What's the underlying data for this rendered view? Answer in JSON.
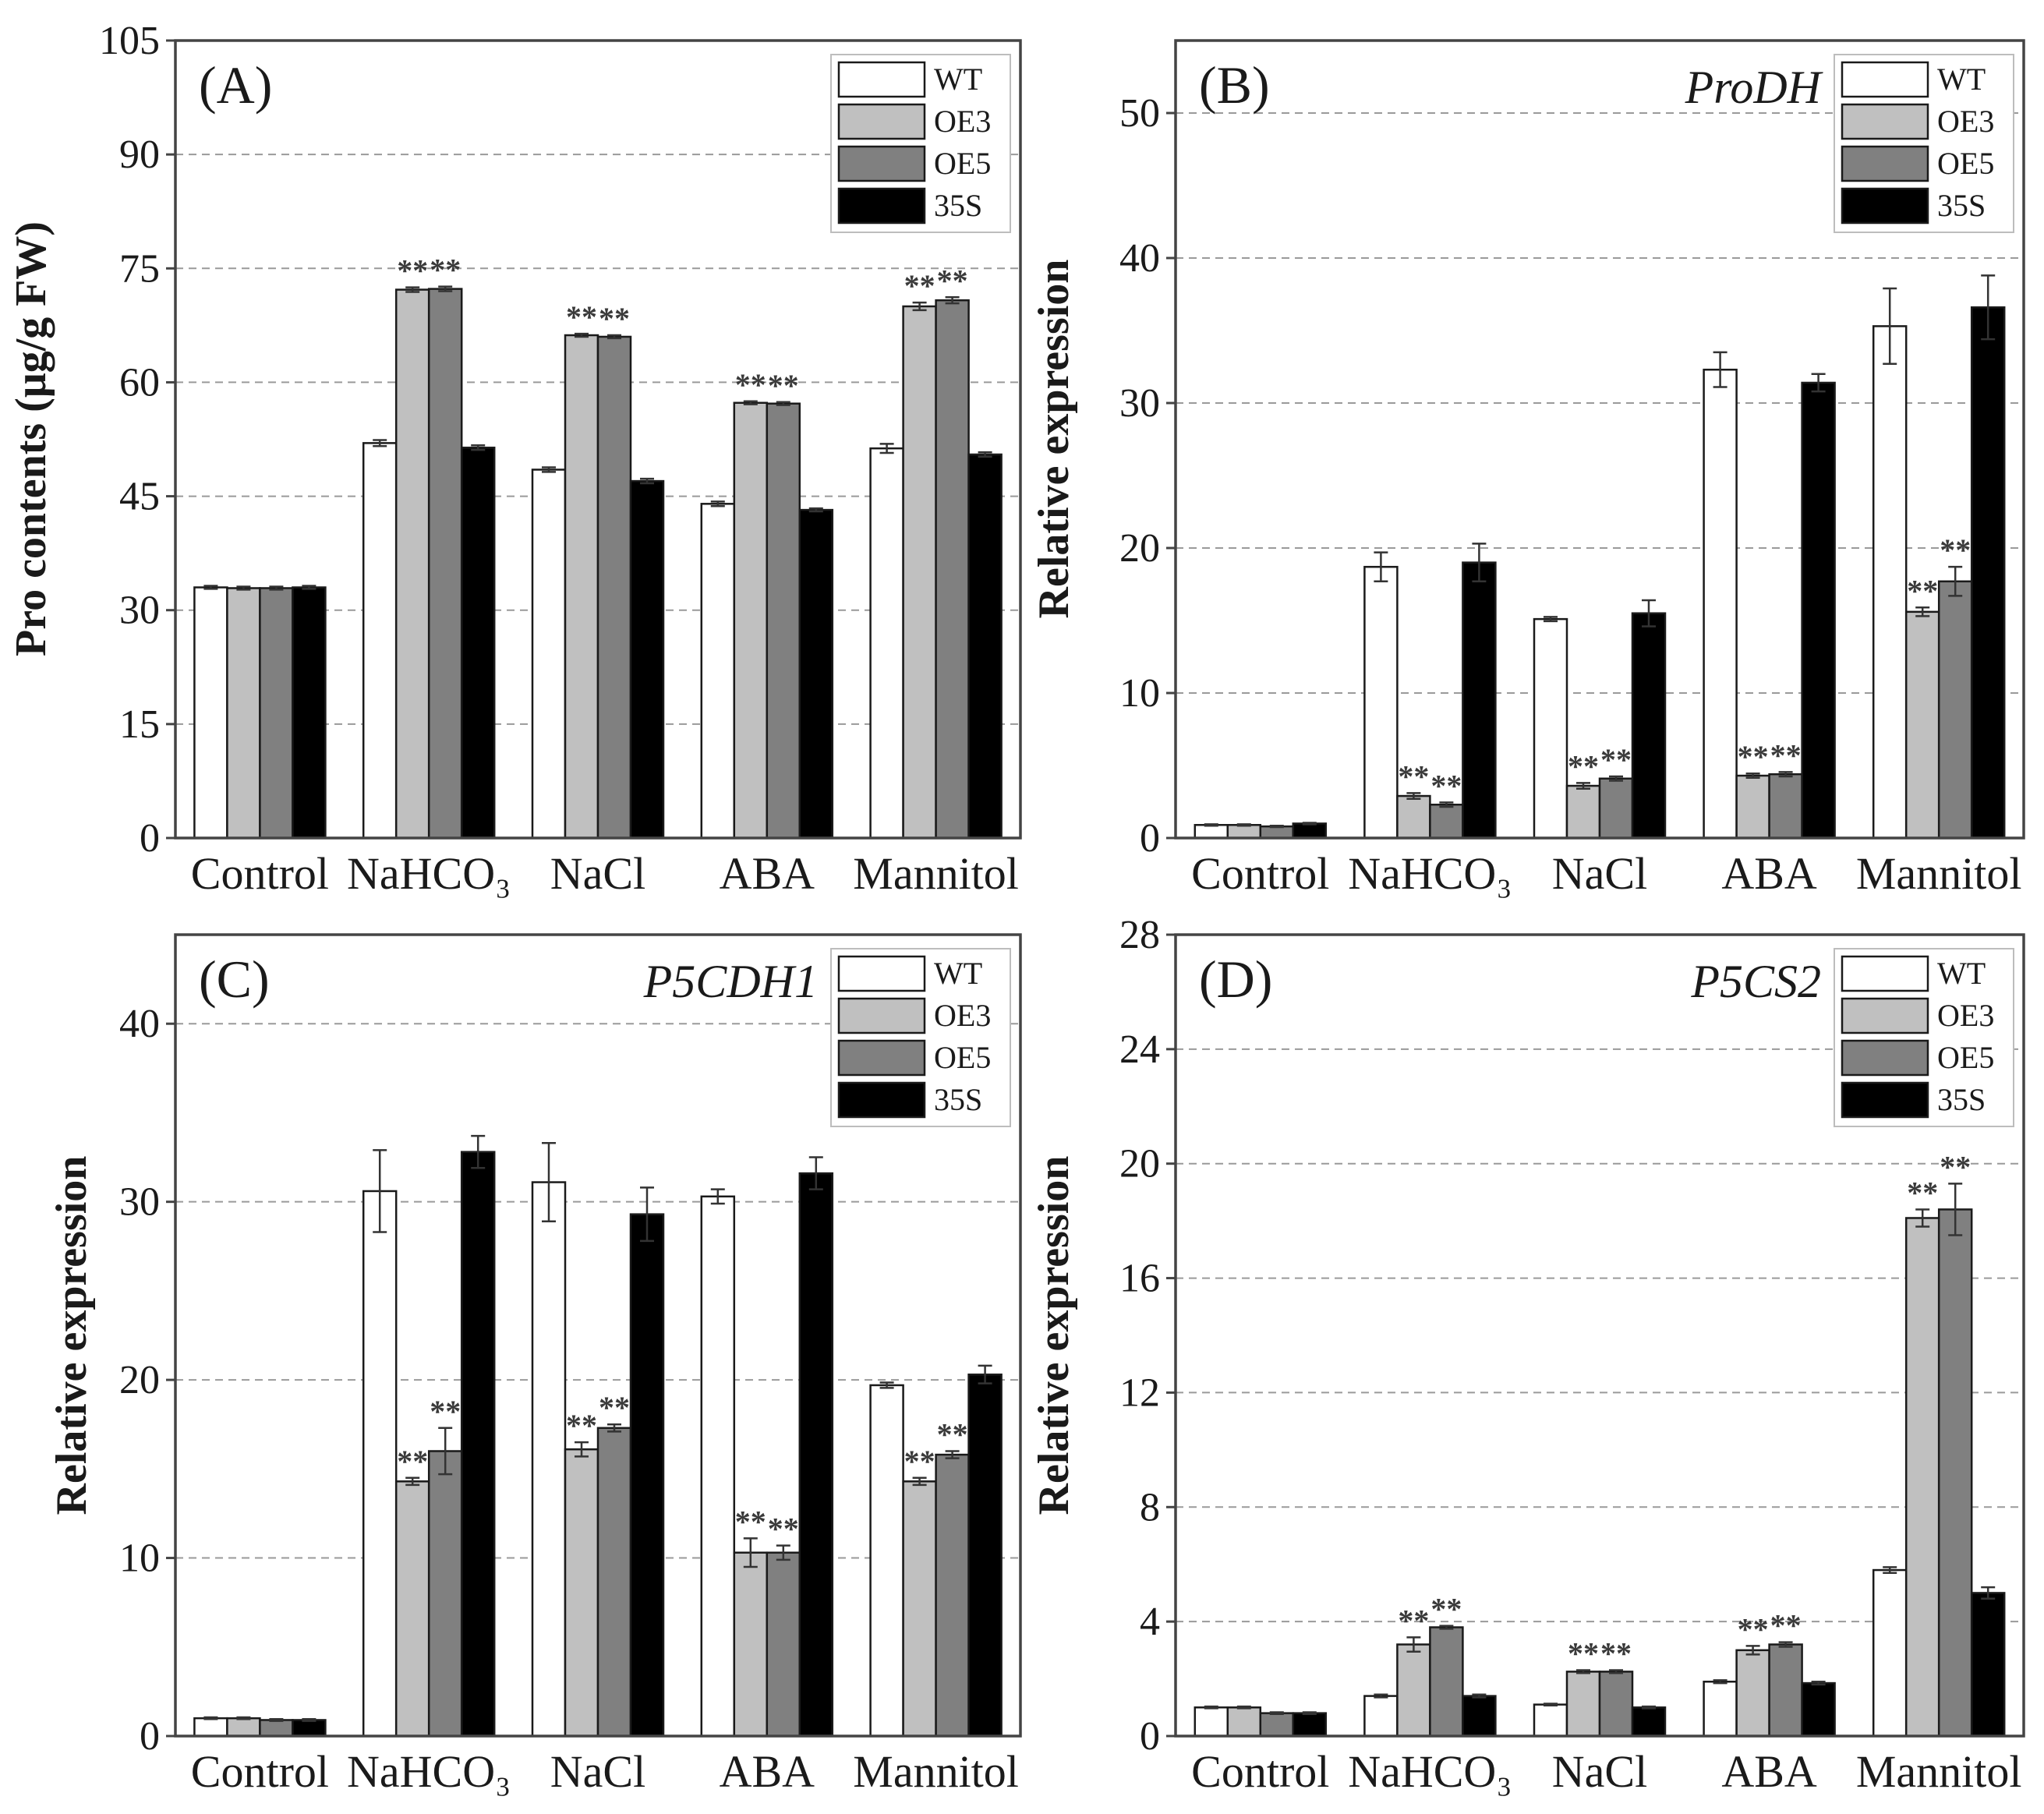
{
  "chart_data": [
    {
      "type": "bar",
      "panel_label": "(A)",
      "gene_title": "",
      "ylabel": "Pro contents (μg/g FW)",
      "ylim": [
        0,
        105
      ],
      "yticks": [
        0,
        15,
        30,
        45,
        60,
        75,
        90,
        105
      ],
      "grid": "horizontal dashed",
      "legend_position": "top-right",
      "categories": [
        "Control",
        "NaHCO₃",
        "NaCl",
        "ABA",
        "Mannitol"
      ],
      "series": [
        {
          "name": "WT",
          "values": [
            33,
            52,
            48.5,
            44,
            51.3
          ],
          "errors": [
            0.2,
            0.4,
            0.3,
            0.3,
            0.6
          ]
        },
        {
          "name": "OE3",
          "values": [
            32.9,
            72.2,
            66.2,
            57.3,
            70
          ],
          "errors": [
            0.2,
            0.3,
            0.2,
            0.2,
            0.5
          ]
        },
        {
          "name": "OE5",
          "values": [
            32.9,
            72.3,
            66,
            57.2,
            70.8
          ],
          "errors": [
            0.2,
            0.3,
            0.2,
            0.2,
            0.4
          ]
        },
        {
          "name": "35S",
          "values": [
            33,
            51.4,
            47,
            43.2,
            50.5
          ],
          "errors": [
            0.2,
            0.3,
            0.3,
            0.2,
            0.3
          ]
        }
      ],
      "significance": [
        {
          "category": "NaHCO₃",
          "series": "OE3",
          "mark": "**"
        },
        {
          "category": "NaHCO₃",
          "series": "OE5",
          "mark": "**"
        },
        {
          "category": "NaCl",
          "series": "OE3",
          "mark": "**"
        },
        {
          "category": "NaCl",
          "series": "OE5",
          "mark": "**"
        },
        {
          "category": "ABA",
          "series": "OE3",
          "mark": "**"
        },
        {
          "category": "ABA",
          "series": "OE5",
          "mark": "**"
        },
        {
          "category": "Mannitol",
          "series": "OE3",
          "mark": "**"
        },
        {
          "category": "Mannitol",
          "series": "OE5",
          "mark": "**"
        }
      ]
    },
    {
      "type": "bar",
      "panel_label": "(B)",
      "gene_title": "ProDH",
      "ylabel": "Relative expression",
      "ylim": [
        0,
        55
      ],
      "yticks": [
        0,
        10,
        20,
        30,
        40,
        50
      ],
      "grid": "horizontal dashed",
      "legend_position": "top-right",
      "categories": [
        "Control",
        "NaHCO₃",
        "NaCl",
        "ABA",
        "Mannitol"
      ],
      "series": [
        {
          "name": "WT",
          "values": [
            0.9,
            18.7,
            15.1,
            32.3,
            35.3
          ],
          "errors": [
            0.05,
            1.0,
            0.15,
            1.2,
            2.6
          ]
        },
        {
          "name": "OE3",
          "values": [
            0.9,
            2.9,
            3.6,
            4.3,
            15.6
          ],
          "errors": [
            0.05,
            0.2,
            0.2,
            0.15,
            0.3
          ]
        },
        {
          "name": "OE5",
          "values": [
            0.8,
            2.3,
            4.1,
            4.4,
            17.7
          ],
          "errors": [
            0.05,
            0.15,
            0.15,
            0.15,
            1.0
          ]
        },
        {
          "name": "35S",
          "values": [
            1.0,
            19.0,
            15.5,
            31.4,
            36.6
          ],
          "errors": [
            0.05,
            1.3,
            0.9,
            0.6,
            2.2
          ]
        }
      ],
      "significance": [
        {
          "category": "NaHCO₃",
          "series": "OE3",
          "mark": "**"
        },
        {
          "category": "NaHCO₃",
          "series": "OE5",
          "mark": "**"
        },
        {
          "category": "NaCl",
          "series": "OE3",
          "mark": "**"
        },
        {
          "category": "NaCl",
          "series": "OE5",
          "mark": "**"
        },
        {
          "category": "ABA",
          "series": "OE3",
          "mark": "**"
        },
        {
          "category": "ABA",
          "series": "OE5",
          "mark": "**"
        },
        {
          "category": "Mannitol",
          "series": "OE3",
          "mark": "**"
        },
        {
          "category": "Mannitol",
          "series": "OE5",
          "mark": "**"
        }
      ]
    },
    {
      "type": "bar",
      "panel_label": "(C)",
      "gene_title": "P5CDH1",
      "ylabel": "Relative expression",
      "ylim": [
        0,
        45
      ],
      "yticks": [
        0,
        10,
        20,
        30,
        40
      ],
      "grid": "horizontal dashed",
      "legend_position": "top-right",
      "categories": [
        "Control",
        "NaHCO₃",
        "NaCl",
        "ABA",
        "Mannitol"
      ],
      "series": [
        {
          "name": "WT",
          "values": [
            1.0,
            30.6,
            31.1,
            30.3,
            19.7
          ],
          "errors": [
            0.05,
            2.3,
            2.2,
            0.4,
            0.15
          ]
        },
        {
          "name": "OE3",
          "values": [
            1.0,
            14.3,
            16.1,
            10.3,
            14.3
          ],
          "errors": [
            0.05,
            0.2,
            0.4,
            0.8,
            0.2
          ]
        },
        {
          "name": "OE5",
          "values": [
            0.9,
            16.0,
            17.3,
            10.3,
            15.8
          ],
          "errors": [
            0.05,
            1.3,
            0.2,
            0.4,
            0.2
          ]
        },
        {
          "name": "35S",
          "values": [
            0.9,
            32.8,
            29.3,
            31.6,
            20.3
          ],
          "errors": [
            0.05,
            0.9,
            1.5,
            0.9,
            0.5
          ]
        }
      ],
      "significance": [
        {
          "category": "NaHCO₃",
          "series": "OE3",
          "mark": "**"
        },
        {
          "category": "NaHCO₃",
          "series": "OE5",
          "mark": "**"
        },
        {
          "category": "NaCl",
          "series": "OE3",
          "mark": "**"
        },
        {
          "category": "NaCl",
          "series": "OE5",
          "mark": "**"
        },
        {
          "category": "ABA",
          "series": "OE3",
          "mark": "**"
        },
        {
          "category": "ABA",
          "series": "OE5",
          "mark": "**"
        },
        {
          "category": "Mannitol",
          "series": "OE3",
          "mark": "**"
        },
        {
          "category": "Mannitol",
          "series": "OE5",
          "mark": "**"
        }
      ]
    },
    {
      "type": "bar",
      "panel_label": "(D)",
      "gene_title": "P5CS2",
      "ylabel": "Relative expression",
      "ylim": [
        0,
        28
      ],
      "yticks": [
        0,
        4,
        8,
        12,
        16,
        20,
        24,
        28
      ],
      "grid": "horizontal dashed",
      "legend_position": "top-right",
      "categories": [
        "Control",
        "NaHCO₃",
        "NaCl",
        "ABA",
        "Mannitol"
      ],
      "series": [
        {
          "name": "WT",
          "values": [
            1.0,
            1.4,
            1.1,
            1.9,
            5.8
          ],
          "errors": [
            0.03,
            0.05,
            0.03,
            0.05,
            0.1
          ]
        },
        {
          "name": "OE3",
          "values": [
            1.0,
            3.2,
            2.25,
            3.0,
            18.1
          ],
          "errors": [
            0.03,
            0.25,
            0.05,
            0.15,
            0.3
          ]
        },
        {
          "name": "OE5",
          "values": [
            0.8,
            3.8,
            2.25,
            3.2,
            18.4
          ],
          "errors": [
            0.03,
            0.05,
            0.05,
            0.08,
            0.9
          ]
        },
        {
          "name": "35S",
          "values": [
            0.8,
            1.4,
            1.0,
            1.85,
            5.0
          ],
          "errors": [
            0.03,
            0.05,
            0.03,
            0.05,
            0.2
          ]
        }
      ],
      "significance": [
        {
          "category": "NaHCO₃",
          "series": "OE3",
          "mark": "**"
        },
        {
          "category": "NaHCO₃",
          "series": "OE5",
          "mark": "**"
        },
        {
          "category": "NaCl",
          "series": "OE3",
          "mark": "**"
        },
        {
          "category": "NaCl",
          "series": "OE5",
          "mark": "**"
        },
        {
          "category": "ABA",
          "series": "OE3",
          "mark": "**"
        },
        {
          "category": "ABA",
          "series": "OE5",
          "mark": "**"
        },
        {
          "category": "Mannitol",
          "series": "OE3",
          "mark": "**"
        },
        {
          "category": "Mannitol",
          "series": "OE5",
          "mark": "**"
        }
      ]
    }
  ],
  "colors": {
    "WT": "#ffffff",
    "OE3": "#c0c0c0",
    "OE5": "#808080",
    "35S": "#000000",
    "bar_stroke": "#1a1a1a",
    "grid": "#9a9a9a",
    "frame": "#444444"
  }
}
